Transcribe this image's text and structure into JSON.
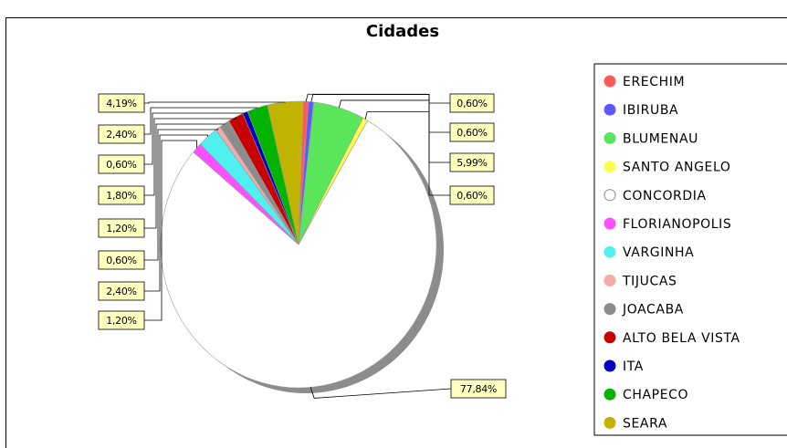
{
  "chart_data": {
    "type": "pie",
    "title": "Cidades",
    "series": [
      {
        "name": "ERECHIM",
        "value": 0.6,
        "label": "0,60%",
        "color": "#ff5a5a"
      },
      {
        "name": "IBIRUBA",
        "value": 0.6,
        "label": "0,60%",
        "color": "#5a5aff"
      },
      {
        "name": "BLUMENAU",
        "value": 5.99,
        "label": "5,99%",
        "color": "#5ae65a"
      },
      {
        "name": "SANTO ANGELO",
        "value": 0.6,
        "label": "0,60%",
        "color": "#ffff50"
      },
      {
        "name": "CONCORDIA",
        "value": 77.84,
        "label": "77,84%",
        "color": "#ffffff"
      },
      {
        "name": "FLORIANOPOLIS",
        "value": 1.2,
        "label": "1,20%",
        "color": "#ff50ff"
      },
      {
        "name": "VARGINHA",
        "value": 2.4,
        "label": "2,40%",
        "color": "#50f0f0"
      },
      {
        "name": "TIJUCAS",
        "value": 0.6,
        "label": "0,60%",
        "color": "#f5aaaa"
      },
      {
        "name": "JOACABA",
        "value": 1.2,
        "label": "1,20%",
        "color": "#8c8c8c"
      },
      {
        "name": "ALTO BELA VISTA",
        "value": 1.8,
        "label": "1,80%",
        "color": "#c80000"
      },
      {
        "name": "ITA",
        "value": 0.6,
        "label": "0,60%",
        "color": "#0000c0"
      },
      {
        "name": "CHAPECO",
        "value": 2.4,
        "label": "2,40%",
        "color": "#00b400"
      },
      {
        "name": "SEARA",
        "value": 4.19,
        "label": "4,19%",
        "color": "#c0b400"
      }
    ],
    "legend_position": "right"
  }
}
